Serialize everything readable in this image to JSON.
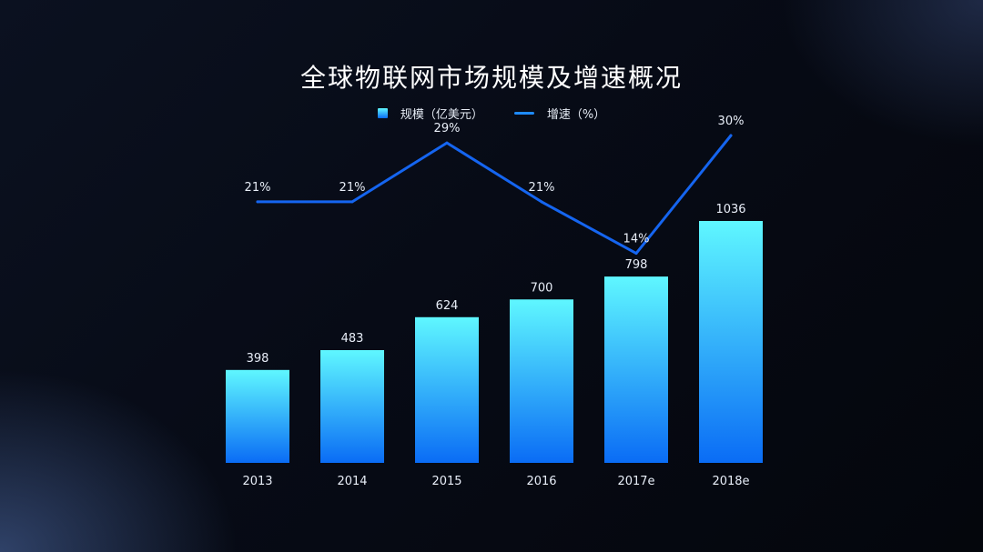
{
  "chart_data": {
    "type": "bar",
    "title": "全球物联网市场规模及增速概况",
    "categories": [
      "2013",
      "2014",
      "2015",
      "2016",
      "2017e",
      "2018e"
    ],
    "series": [
      {
        "name": "规模（亿美元）",
        "type": "bar",
        "values": [
          398,
          483,
          624,
          700,
          798,
          1036
        ],
        "labels": [
          "398",
          "483",
          "624",
          "700",
          "798",
          "1036"
        ]
      },
      {
        "name": "增速（%）",
        "type": "line",
        "values": [
          21,
          21,
          29,
          21,
          14,
          30
        ],
        "labels": [
          "21%",
          "21%",
          "29%",
          "21%",
          "14%",
          "30%"
        ]
      }
    ],
    "xlabel": "",
    "ylabel": "",
    "grid": false,
    "legend_position": "top-center",
    "colors": {
      "bar_top": "#5ff7ff",
      "bar_bottom": "#0a6cf5",
      "line": "#1565f0",
      "label": "#e8eef8"
    }
  }
}
